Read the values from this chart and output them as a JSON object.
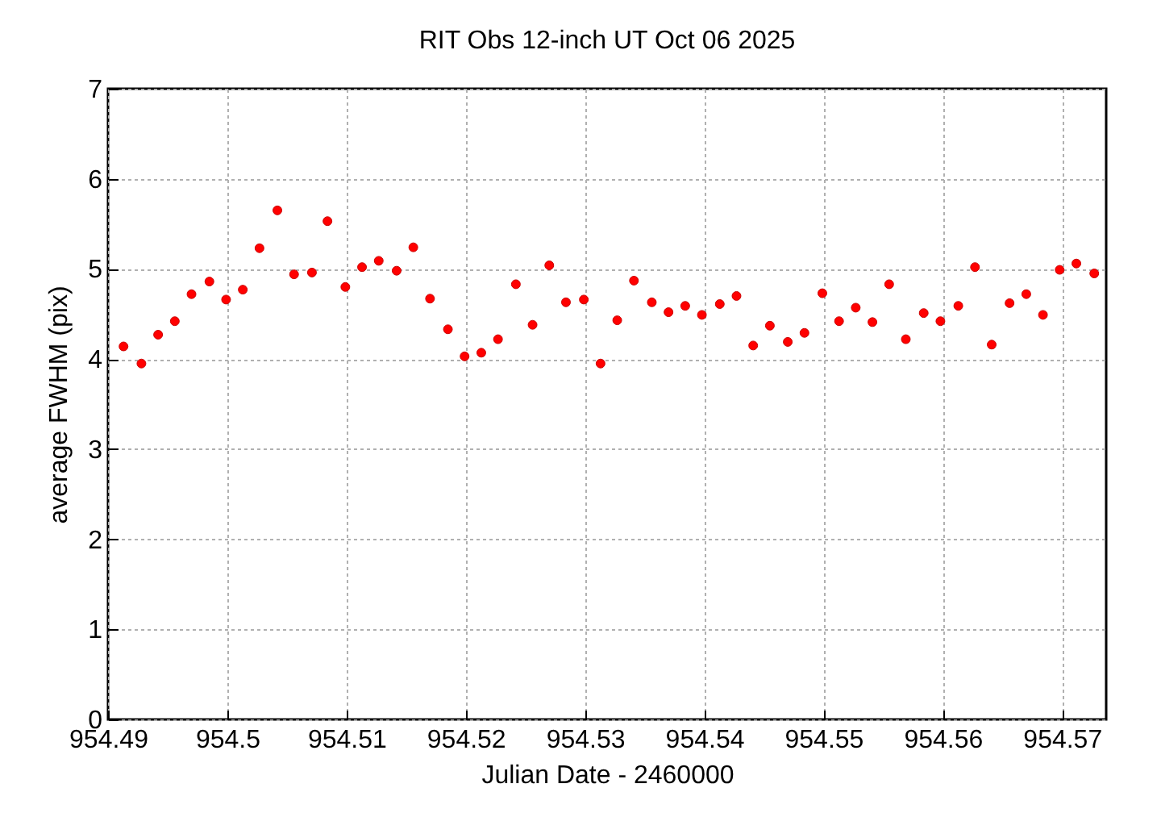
{
  "chart_data": {
    "type": "scatter",
    "title": "RIT Obs 12-inch UT Oct 06 2025",
    "xlabel": "Julian Date - 2460000",
    "ylabel": "average FWHM (pix)",
    "x": [
      954.4913,
      954.4928,
      954.4942,
      954.4956,
      954.497,
      954.4985,
      954.4999,
      954.5013,
      954.5027,
      954.5042,
      954.5056,
      954.5071,
      954.5084,
      954.5099,
      954.5113,
      954.5127,
      954.5142,
      954.5156,
      954.517,
      954.5185,
      954.5199,
      954.5213,
      954.5227,
      954.5242,
      954.5256,
      954.527,
      954.5284,
      954.5299,
      954.5313,
      954.5327,
      954.5341,
      954.5356,
      954.537,
      954.5384,
      954.5398,
      954.5413,
      954.5427,
      954.5441,
      954.5455,
      954.547,
      954.5484,
      954.5499,
      954.5513,
      954.5527,
      954.5541,
      954.5555,
      954.5569,
      954.5584,
      954.5598,
      954.5613,
      954.5627,
      954.5641,
      954.5656,
      954.567,
      954.5684,
      954.5698,
      954.5712,
      954.5727
    ],
    "series": [
      {
        "color": "#ff0000",
        "values": [
          4.14,
          3.95,
          4.27,
          4.42,
          4.72,
          4.86,
          4.66,
          4.77,
          5.23,
          5.65,
          4.94,
          4.96,
          5.53,
          4.8,
          5.02,
          5.09,
          4.98,
          5.24,
          4.67,
          4.33,
          4.03,
          4.07,
          4.22,
          4.83,
          4.38,
          5.04,
          4.63,
          4.66,
          3.95,
          4.43,
          4.87,
          4.63,
          4.52,
          4.59,
          4.49,
          4.61,
          4.7,
          4.15,
          4.37,
          4.19,
          4.29,
          4.73,
          4.42,
          4.57,
          4.41,
          4.83,
          4.22,
          4.51,
          4.42,
          4.59,
          5.02,
          4.16,
          4.62,
          4.72,
          4.49,
          4.99,
          5.06,
          4.95
        ]
      }
    ],
    "xlim": [
      954.49,
      954.5737
    ],
    "xticks": [
      954.49,
      954.5,
      954.51,
      954.52,
      954.53,
      954.54,
      954.55,
      954.56,
      954.57
    ],
    "ylim": [
      0,
      7
    ],
    "yticks": [
      0,
      1,
      2,
      3,
      4,
      5,
      6,
      7
    ],
    "grid": true,
    "marker": "circle"
  }
}
